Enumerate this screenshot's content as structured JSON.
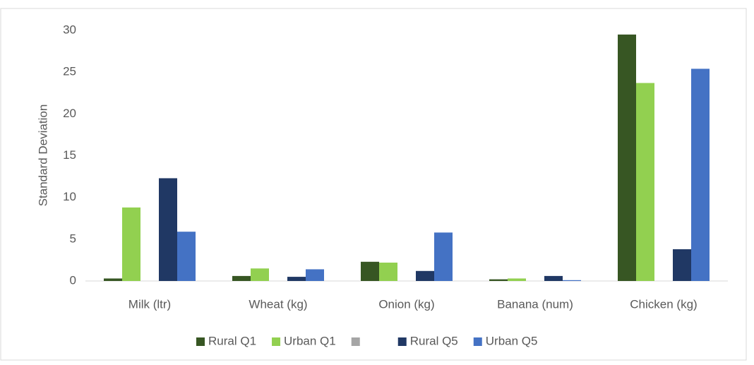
{
  "chart_data": {
    "type": "bar",
    "categories": [
      "Milk (ltr)",
      "Wheat (kg)",
      "Onion (kg)",
      "Banana (num)",
      "Chicken (kg)"
    ],
    "y_label": "Standard Deviation",
    "series": [
      {
        "name": "Rural Q1",
        "color": "#375623",
        "values": [
          0.3,
          0.6,
          2.3,
          0.2,
          29.5
        ]
      },
      {
        "name": "Urban Q1",
        "color": "#92d050",
        "values": [
          8.8,
          1.5,
          2.2,
          0.3,
          23.7
        ]
      },
      {
        "color": "#a5a5a5",
        "values": [
          0,
          0,
          0,
          0,
          0
        ]
      },
      {
        "name": "Rural Q5",
        "color": "#203864",
        "values": [
          12.3,
          0.5,
          1.2,
          0.6,
          3.8
        ]
      },
      {
        "name": "Urban Q5",
        "color": "#4472c4",
        "values": [
          5.9,
          1.4,
          5.8,
          0.1,
          25.4
        ]
      }
    ],
    "ylim": [
      0,
      30
    ],
    "yticks": [
      0,
      5,
      10,
      15,
      20,
      25,
      30
    ],
    "grid": false,
    "legend": "bottom"
  }
}
